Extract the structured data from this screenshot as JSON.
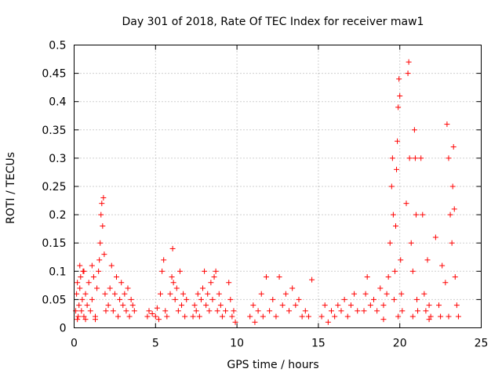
{
  "chart_data": {
    "type": "scatter",
    "title": "Day 301 of 2018, Rate Of TEC Index for receiver maw1",
    "xlabel": "GPS time / hours",
    "ylabel": "ROTI / TECUs",
    "xlim": [
      0,
      25
    ],
    "ylim": [
      0,
      0.5
    ],
    "x_ticks": [
      0,
      5,
      10,
      15,
      20,
      25
    ],
    "y_ticks": [
      0,
      0.05,
      0.1,
      0.15,
      0.2,
      0.25,
      0.3,
      0.35,
      0.4,
      0.45,
      0.5
    ],
    "x_tick_labels": [
      "0",
      "5",
      "10",
      "15",
      "20",
      "25"
    ],
    "y_tick_labels": [
      "0",
      "0.05",
      "0.1",
      "0.15",
      "0.2",
      "0.25",
      "0.3",
      "0.35",
      "0.4",
      "0.45",
      "0.5"
    ],
    "grid": true,
    "marker": "+",
    "color": "#ff0000",
    "series": [
      {
        "name": "ROTI",
        "points": [
          [
            0.1,
            0.03
          ],
          [
            0.15,
            0.06
          ],
          [
            0.2,
            0.08
          ],
          [
            0.25,
            0.02
          ],
          [
            0.3,
            0.04
          ],
          [
            0.35,
            0.07
          ],
          [
            0.4,
            0.09
          ],
          [
            0.45,
            0.03
          ],
          [
            0.5,
            0.05
          ],
          [
            0.55,
            0.1
          ],
          [
            0.6,
            0.02
          ],
          [
            0.7,
            0.06
          ],
          [
            0.8,
            0.04
          ],
          [
            0.9,
            0.08
          ],
          [
            1.0,
            0.03
          ],
          [
            1.1,
            0.05
          ],
          [
            1.2,
            0.09
          ],
          [
            1.3,
            0.02
          ],
          [
            1.4,
            0.07
          ],
          [
            1.5,
            0.1
          ],
          [
            1.55,
            0.12
          ],
          [
            1.6,
            0.15
          ],
          [
            1.65,
            0.2
          ],
          [
            1.7,
            0.22
          ],
          [
            1.75,
            0.18
          ],
          [
            1.8,
            0.23
          ],
          [
            1.85,
            0.13
          ],
          [
            1.9,
            0.06
          ],
          [
            1.95,
            0.03
          ],
          [
            0.35,
            0.11
          ],
          [
            0.6,
            0.1
          ],
          [
            1.1,
            0.11
          ],
          [
            0.2,
            0.015
          ],
          [
            0.7,
            0.015
          ],
          [
            1.3,
            0.015
          ],
          [
            2.1,
            0.04
          ],
          [
            2.2,
            0.07
          ],
          [
            2.3,
            0.11
          ],
          [
            2.4,
            0.03
          ],
          [
            2.5,
            0.06
          ],
          [
            2.6,
            0.09
          ],
          [
            2.7,
            0.02
          ],
          [
            2.8,
            0.05
          ],
          [
            2.9,
            0.08
          ],
          [
            3.0,
            0.04
          ],
          [
            3.1,
            0.06
          ],
          [
            3.2,
            0.03
          ],
          [
            3.3,
            0.07
          ],
          [
            3.4,
            0.02
          ],
          [
            3.5,
            0.05
          ],
          [
            3.6,
            0.04
          ],
          [
            3.7,
            0.03
          ],
          [
            4.5,
            0.02
          ],
          [
            4.6,
            0.03
          ],
          [
            4.8,
            0.025
          ],
          [
            5.0,
            0.02
          ],
          [
            5.1,
            0.035
          ],
          [
            5.2,
            0.015
          ],
          [
            5.3,
            0.06
          ],
          [
            5.4,
            0.1
          ],
          [
            5.5,
            0.12
          ],
          [
            5.6,
            0.03
          ],
          [
            5.7,
            0.02
          ],
          [
            5.9,
            0.06
          ],
          [
            6.0,
            0.09
          ],
          [
            6.05,
            0.14
          ],
          [
            6.1,
            0.08
          ],
          [
            6.2,
            0.05
          ],
          [
            6.3,
            0.07
          ],
          [
            6.4,
            0.03
          ],
          [
            6.5,
            0.1
          ],
          [
            6.6,
            0.04
          ],
          [
            6.7,
            0.06
          ],
          [
            6.8,
            0.02
          ],
          [
            6.9,
            0.05
          ],
          [
            7.3,
            0.02
          ],
          [
            7.4,
            0.04
          ],
          [
            7.5,
            0.03
          ],
          [
            7.6,
            0.06
          ],
          [
            7.7,
            0.02
          ],
          [
            7.8,
            0.05
          ],
          [
            7.9,
            0.07
          ],
          [
            8.0,
            0.1
          ],
          [
            8.1,
            0.04
          ],
          [
            8.2,
            0.06
          ],
          [
            8.3,
            0.03
          ],
          [
            8.4,
            0.08
          ],
          [
            8.5,
            0.05
          ],
          [
            8.6,
            0.09
          ],
          [
            8.7,
            0.1
          ],
          [
            8.8,
            0.03
          ],
          [
            8.9,
            0.06
          ],
          [
            9.0,
            0.04
          ],
          [
            9.1,
            0.02
          ],
          [
            9.3,
            0.03
          ],
          [
            9.5,
            0.08
          ],
          [
            9.6,
            0.05
          ],
          [
            9.7,
            0.02
          ],
          [
            9.8,
            0.03
          ],
          [
            9.9,
            0.01
          ],
          [
            10.8,
            0.02
          ],
          [
            11.0,
            0.04
          ],
          [
            11.1,
            0.01
          ],
          [
            11.3,
            0.03
          ],
          [
            11.5,
            0.06
          ],
          [
            11.6,
            0.02
          ],
          [
            11.8,
            0.09
          ],
          [
            12.0,
            0.03
          ],
          [
            12.2,
            0.05
          ],
          [
            12.4,
            0.02
          ],
          [
            12.6,
            0.09
          ],
          [
            12.8,
            0.04
          ],
          [
            13.0,
            0.06
          ],
          [
            13.2,
            0.03
          ],
          [
            13.4,
            0.07
          ],
          [
            13.6,
            0.04
          ],
          [
            13.8,
            0.05
          ],
          [
            14.0,
            0.02
          ],
          [
            14.2,
            0.03
          ],
          [
            14.4,
            0.02
          ],
          [
            14.6,
            0.085
          ],
          [
            15.2,
            0.02
          ],
          [
            15.4,
            0.04
          ],
          [
            15.6,
            0.01
          ],
          [
            15.8,
            0.03
          ],
          [
            16.0,
            0.02
          ],
          [
            16.2,
            0.04
          ],
          [
            16.4,
            0.03
          ],
          [
            16.6,
            0.05
          ],
          [
            16.8,
            0.02
          ],
          [
            17.0,
            0.04
          ],
          [
            17.2,
            0.06
          ],
          [
            17.4,
            0.03
          ],
          [
            17.8,
            0.03
          ],
          [
            17.9,
            0.06
          ],
          [
            18.0,
            0.09
          ],
          [
            18.2,
            0.04
          ],
          [
            18.4,
            0.05
          ],
          [
            18.6,
            0.03
          ],
          [
            18.8,
            0.07
          ],
          [
            19.0,
            0.04
          ],
          [
            19.2,
            0.06
          ],
          [
            19.3,
            0.09
          ],
          [
            19.4,
            0.15
          ],
          [
            19.5,
            0.25
          ],
          [
            19.55,
            0.3
          ],
          [
            19.6,
            0.2
          ],
          [
            19.65,
            0.05
          ],
          [
            19.7,
            0.1
          ],
          [
            19.75,
            0.18
          ],
          [
            19.8,
            0.28
          ],
          [
            19.85,
            0.33
          ],
          [
            19.9,
            0.39
          ],
          [
            19.95,
            0.44
          ],
          [
            20.0,
            0.41
          ],
          [
            20.05,
            0.12
          ],
          [
            20.1,
            0.06
          ],
          [
            20.15,
            0.03
          ],
          [
            20.4,
            0.22
          ],
          [
            20.5,
            0.45
          ],
          [
            20.55,
            0.47
          ],
          [
            20.6,
            0.3
          ],
          [
            20.7,
            0.15
          ],
          [
            20.8,
            0.1
          ],
          [
            20.9,
            0.35
          ],
          [
            20.95,
            0.3
          ],
          [
            21.0,
            0.2
          ],
          [
            21.05,
            0.05
          ],
          [
            21.1,
            0.03
          ],
          [
            21.3,
            0.3
          ],
          [
            21.4,
            0.2
          ],
          [
            21.5,
            0.06
          ],
          [
            21.6,
            0.03
          ],
          [
            21.7,
            0.12
          ],
          [
            21.8,
            0.04
          ],
          [
            21.9,
            0.02
          ],
          [
            22.2,
            0.16
          ],
          [
            22.4,
            0.04
          ],
          [
            22.6,
            0.11
          ],
          [
            22.8,
            0.08
          ],
          [
            22.9,
            0.36
          ],
          [
            23.0,
            0.3
          ],
          [
            23.1,
            0.2
          ],
          [
            23.2,
            0.15
          ],
          [
            23.25,
            0.25
          ],
          [
            23.3,
            0.32
          ],
          [
            23.35,
            0.21
          ],
          [
            23.4,
            0.09
          ],
          [
            23.5,
            0.04
          ],
          [
            23.6,
            0.02
          ],
          [
            23.0,
            0.02
          ],
          [
            22.5,
            0.02
          ],
          [
            21.8,
            0.015
          ],
          [
            20.8,
            0.02
          ],
          [
            19.9,
            0.02
          ],
          [
            19.0,
            0.015
          ]
        ]
      }
    ]
  }
}
